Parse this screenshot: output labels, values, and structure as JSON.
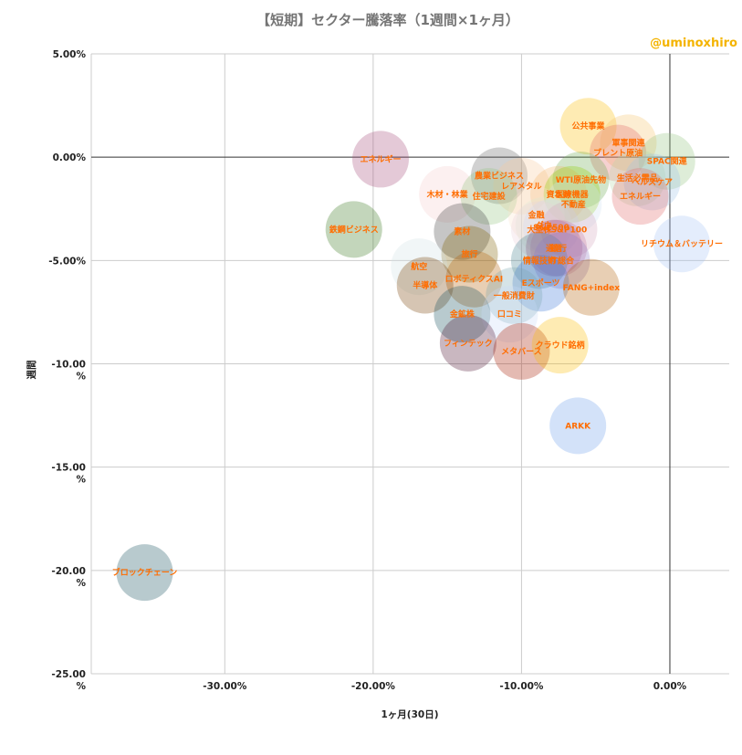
{
  "chart_data": {
    "type": "scatter",
    "title": "【短期】セクター騰落率（1週間×1ヶ月）",
    "credit": "@uminoxhiro",
    "xlabel": "1ヶ月(30日)",
    "ylabel": "週間",
    "xlim": [
      -39.0,
      4.0
    ],
    "ylim": [
      -25.0,
      5.0
    ],
    "x_ticks": [
      -30,
      -20,
      -10,
      0
    ],
    "x_tick_labels": [
      "-30.00%",
      "-20.00%",
      "-10.00%",
      "0.00%"
    ],
    "y_ticks": [
      5,
      0,
      -5,
      -10,
      -15,
      -20,
      -25
    ],
    "y_tick_labels": [
      [
        "5.00%"
      ],
      [
        "0.00%"
      ],
      [
        "-5.00%"
      ],
      [
        "-10.00",
        "%"
      ],
      [
        "-15.00",
        "%"
      ],
      [
        "-20.00",
        "%"
      ],
      [
        "-25.00",
        "%"
      ]
    ],
    "grid": true,
    "points": [
      {
        "label": "公共事業",
        "x": -5.5,
        "y": 1.5,
        "color": "#fbbc04"
      },
      {
        "label": "軍事関連",
        "x": -2.8,
        "y": 0.7,
        "color": "#f6c26b"
      },
      {
        "label": "ブレント原油",
        "x": -3.5,
        "y": 0.2,
        "color": "#e06666"
      },
      {
        "label": "SPAC関連",
        "x": -0.2,
        "y": -0.2,
        "color": "#93c47d"
      },
      {
        "label": "エネルギー",
        "x": -19.5,
        "y": -0.1,
        "color": "#a64d79"
      },
      {
        "label": "生活必需品",
        "x": -2.2,
        "y": -1.0,
        "color": "#b6d7a8"
      },
      {
        "label": "ヘルスケア",
        "x": -1.2,
        "y": -1.2,
        "color": "#9fc5e8"
      },
      {
        "label": "農業ビジネス",
        "x": -11.5,
        "y": -0.9,
        "color": "#666666"
      },
      {
        "label": "レアメタル",
        "x": -10.0,
        "y": -1.4,
        "color": "#f9cb9c"
      },
      {
        "label": "WTI原油先物",
        "x": -6.0,
        "y": -1.1,
        "color": "#6aa84f"
      },
      {
        "label": "資本財",
        "x": -7.5,
        "y": -1.8,
        "color": "#f6b26b"
      },
      {
        "label": "医療機器",
        "x": -6.6,
        "y": -1.8,
        "color": "#8fce00"
      },
      {
        "label": "エネルギー",
        "x": -2.0,
        "y": -1.9,
        "color": "#e06666"
      },
      {
        "label": "不動産",
        "x": -6.5,
        "y": -2.3,
        "color": "#cfe2f3"
      },
      {
        "label": "木材・林業",
        "x": -15.0,
        "y": -1.8,
        "color": "#f4cccc"
      },
      {
        "label": "住宅建設",
        "x": -12.2,
        "y": -1.9,
        "color": "#93c47d"
      },
      {
        "label": "金融",
        "x": -9.0,
        "y": -2.8,
        "color": "#fce5cd"
      },
      {
        "label": "ダウ",
        "x": -8.5,
        "y": -3.3,
        "color": "#d9ead3"
      },
      {
        "label": "S&P500",
        "x": -8.0,
        "y": -3.4,
        "color": "#c9daf8"
      },
      {
        "label": "大型株",
        "x": -8.8,
        "y": -3.5,
        "color": "#ead1dc"
      },
      {
        "label": "S&P100",
        "x": -6.8,
        "y": -3.5,
        "color": "#d5a6bd"
      },
      {
        "label": "鉄鋼ビジネス",
        "x": -21.3,
        "y": -3.5,
        "color": "#38761d"
      },
      {
        "label": "素材",
        "x": -14.0,
        "y": -3.6,
        "color": "#434343"
      },
      {
        "label": "通信",
        "x": -7.8,
        "y": -4.4,
        "color": "#a64d79"
      },
      {
        "label": "銀行",
        "x": -7.5,
        "y": -4.4,
        "color": "#c27ba0"
      },
      {
        "label": "旅行",
        "x": -13.5,
        "y": -4.7,
        "color": "#7f6000"
      },
      {
        "label": "リチウム＆バッテリー",
        "x": 0.8,
        "y": -4.2,
        "color": "#a4c2f4"
      },
      {
        "label": "情報技術",
        "x": -8.8,
        "y": -5.0,
        "color": "#45818e"
      },
      {
        "label": "IT総合",
        "x": -7.3,
        "y": -5.0,
        "color": "#8e7cc3"
      },
      {
        "label": "航空",
        "x": -16.9,
        "y": -5.3,
        "color": "#d0e0e3"
      },
      {
        "label": "ロボティクスAI",
        "x": -13.2,
        "y": -5.9,
        "color": "#b45f06"
      },
      {
        "label": "半導体",
        "x": -16.5,
        "y": -6.2,
        "color": "#783f04"
      },
      {
        "label": "Eスポーツ",
        "x": -8.7,
        "y": -6.1,
        "color": "#3c78d8"
      },
      {
        "label": "FANG+index",
        "x": -5.3,
        "y": -6.3,
        "color": "#b45f06"
      },
      {
        "label": "一般消費財",
        "x": -10.5,
        "y": -6.7,
        "color": "#76a5af"
      },
      {
        "label": "金鉱株",
        "x": -14.0,
        "y": -7.6,
        "color": "#134f5c"
      },
      {
        "label": "口コミ",
        "x": -10.8,
        "y": -7.6,
        "color": "#c9daf8"
      },
      {
        "label": "フィンテック",
        "x": -13.6,
        "y": -9.0,
        "color": "#4c1130"
      },
      {
        "label": "メタバース",
        "x": -10.0,
        "y": -9.4,
        "color": "#a61c00"
      },
      {
        "label": "クラウド銘柄",
        "x": -7.4,
        "y": -9.1,
        "color": "#fbbc04"
      },
      {
        "label": "ARKK",
        "x": -6.2,
        "y": -13.0,
        "color": "#6d9eeb"
      },
      {
        "label": "ブロックチェーン",
        "x": -35.4,
        "y": -20.1,
        "color": "#134f5c"
      }
    ]
  }
}
